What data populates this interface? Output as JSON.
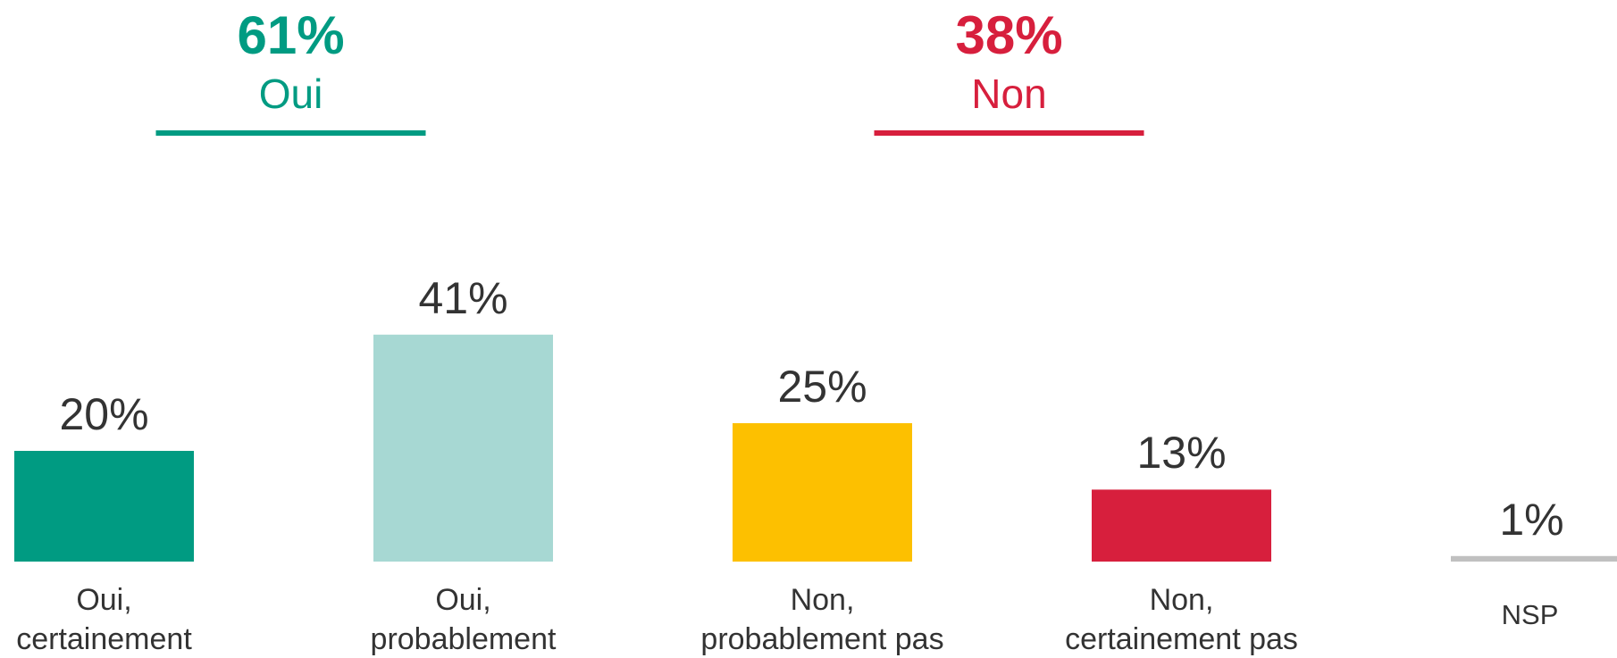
{
  "chart_data": {
    "type": "bar",
    "categories": [
      "Oui,\ncertainement",
      "Oui,\nprobablement",
      "Non,\nprobablement pas",
      "Non,\ncertainement pas",
      "NSP"
    ],
    "values": [
      20,
      41,
      25,
      13,
      1
    ],
    "value_labels": [
      "20%",
      "41%",
      "25%",
      "13%",
      "1%"
    ],
    "colors": [
      "#009b82",
      "#a7d8d3",
      "#fdc000",
      "#d71f3d",
      "#c0c0c0"
    ],
    "ylim": [
      0,
      45
    ],
    "groups": [
      {
        "name": "Oui",
        "value": 61,
        "value_label": "61%",
        "color": "#009b82"
      },
      {
        "name": "Non",
        "value": 38,
        "value_label": "38%",
        "color": "#d71f3d"
      }
    ]
  }
}
